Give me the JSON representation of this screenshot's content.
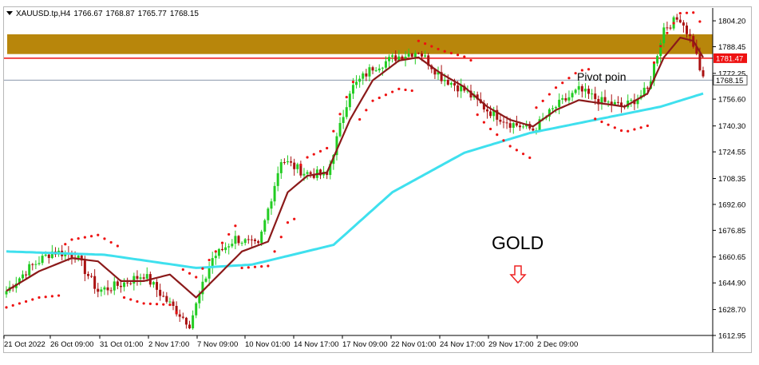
{
  "header": {
    "symbol": "XAUUSD.tp,H4",
    "open": "1766.67",
    "high": "1768.87",
    "low": "1765.77",
    "close": "1768.15"
  },
  "annotations": {
    "pivot_text": "Pivot poin",
    "asset_label": "GOLD",
    "pivot_price_tag": "1781.47",
    "current_price_tag": "1768.15"
  },
  "colors": {
    "bull_candle": "#22cc22",
    "bear_candle": "#aa1111",
    "sar_dots": "#ee1111",
    "fast_ma": "#8b1a1a",
    "slow_ma": "#3fe0ee",
    "resistance_zone": "#b8860b",
    "pivot_line": "#ee1111",
    "price_line": "#7a8aa0",
    "down_arrow": "#ee2222"
  },
  "icons": {
    "down_arrow": "hollow-down-arrow-icon"
  },
  "chart_data": {
    "type": "candlestick",
    "title": "",
    "ylim": [
      1612.95,
      1812.0
    ],
    "y_ticks": [
      "1804.20",
      "1788.45",
      "1772.25",
      "1756.60",
      "1740.30",
      "1724.55",
      "1708.35",
      "1692.60",
      "1676.85",
      "1660.65",
      "1644.90",
      "1628.70",
      "1612.95"
    ],
    "x_labels": [
      "21 Oct 2022",
      "26 Oct 09:00",
      "31 Oct 01:00",
      "2 Nov 17:00",
      "7 Nov 09:00",
      "10 Nov 01:00",
      "14 Nov 17:00",
      "17 Nov 09:00",
      "22 Nov 01:00",
      "24 Nov 17:00",
      "29 Nov 17:00",
      "2 Dec 09:00"
    ],
    "resistance_zone": [
      1784.0,
      1796.0
    ],
    "pivot_level": 1781.47,
    "last_price": 1768.15,
    "close_path": [
      [
        0,
        1640
      ],
      [
        7,
        1654
      ],
      [
        14,
        1664
      ],
      [
        21,
        1662
      ],
      [
        28,
        1640
      ],
      [
        35,
        1644
      ],
      [
        42,
        1650
      ],
      [
        49,
        1634
      ],
      [
        56,
        1620
      ],
      [
        63,
        1660
      ],
      [
        70,
        1672
      ],
      [
        77,
        1667
      ],
      [
        84,
        1720
      ],
      [
        91,
        1712
      ],
      [
        98,
        1710
      ],
      [
        105,
        1762
      ],
      [
        112,
        1776
      ],
      [
        119,
        1782
      ],
      [
        126,
        1786
      ],
      [
        133,
        1770
      ],
      [
        140,
        1762
      ],
      [
        147,
        1750
      ],
      [
        154,
        1742
      ],
      [
        161,
        1738
      ],
      [
        168,
        1752
      ],
      [
        175,
        1762
      ],
      [
        182,
        1755
      ],
      [
        189,
        1752
      ],
      [
        196,
        1762
      ],
      [
        201,
        1800
      ],
      [
        206,
        1806
      ],
      [
        210,
        1790
      ],
      [
        213,
        1768
      ]
    ],
    "series": [
      {
        "name": "",
        "type": "line",
        "x": [
          0,
          30,
          58,
          75,
          100,
          118,
          140,
          160,
          180,
          200,
          213
        ],
        "values": [
          1664,
          1662,
          1654,
          1656,
          1668,
          1700,
          1724,
          1736,
          1744,
          1752,
          1760
        ]
      },
      {
        "name": "",
        "type": "line",
        "x": [
          0,
          10,
          20,
          28,
          35,
          42,
          50,
          58,
          65,
          72,
          80,
          86,
          92,
          98,
          105,
          112,
          120,
          126,
          133,
          140,
          147,
          154,
          161,
          168,
          175,
          182,
          189,
          196,
          201,
          206,
          210,
          213
        ],
        "values": [
          1640,
          1652,
          1660,
          1658,
          1646,
          1646,
          1650,
          1636,
          1650,
          1664,
          1670,
          1700,
          1710,
          1712,
          1744,
          1768,
          1780,
          1782,
          1772,
          1764,
          1752,
          1744,
          1740,
          1750,
          1756,
          1754,
          1752,
          1760,
          1782,
          1794,
          1792,
          1782
        ]
      }
    ]
  }
}
